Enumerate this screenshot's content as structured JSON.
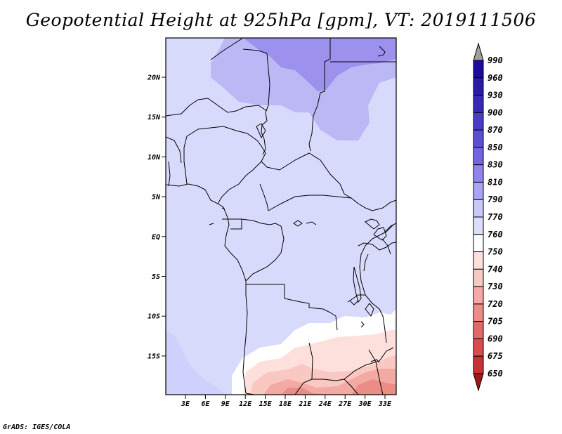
{
  "title": "Geopotential Height at 925hPa [gpm], VT: 2019111506",
  "footer": "GrADS: IGES/COLA",
  "map": {
    "lat_labels": [
      "20N",
      "15N",
      "10N",
      "5N",
      "EQ",
      "5S",
      "10S",
      "15S"
    ],
    "lon_labels": [
      "3E",
      "6E",
      "9E",
      "12E",
      "15E",
      "18E",
      "21E",
      "24E",
      "27E",
      "30E",
      "33E"
    ],
    "background_color": "#d8dafb"
  },
  "colorbar": {
    "levels": [
      "990",
      "960",
      "930",
      "900",
      "870",
      "850",
      "830",
      "810",
      "790",
      "770",
      "760",
      "750",
      "740",
      "730",
      "720",
      "705",
      "690",
      "675",
      "650"
    ],
    "colors": [
      "#1c0a9c",
      "#2a1aa8",
      "#3828b8",
      "#4a3cc8",
      "#5a50d4",
      "#7464e0",
      "#9084ec",
      "#aaa4f4",
      "#c8c8fa",
      "#dcdcfc",
      "#ffffff",
      "#fde0dc",
      "#fac8c2",
      "#f4aaa4",
      "#ec8c86",
      "#e26a66",
      "#d84c4a",
      "#c83232",
      "#b01c1c"
    ],
    "top_arrow_color": "#a0a0a0",
    "bottom_arrow_color": "#a01818"
  }
}
